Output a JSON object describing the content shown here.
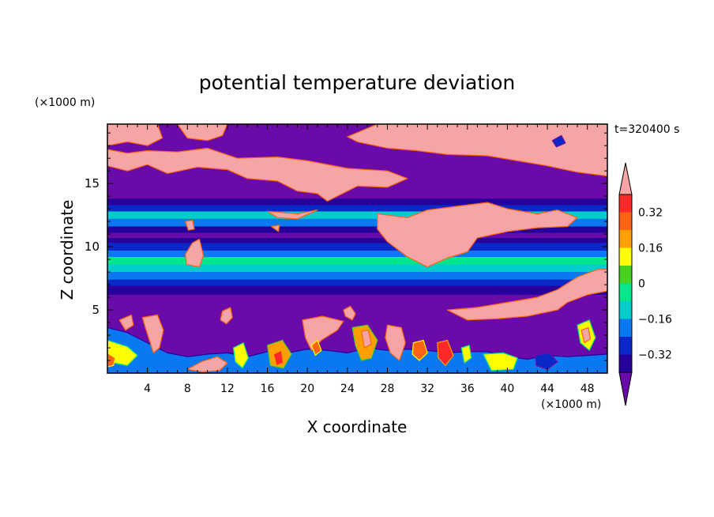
{
  "chart_data": {
    "type": "heatmap",
    "title": "potential temperature deviation",
    "xlabel": "X coordinate",
    "ylabel": "Z coordinate",
    "x_unit": "(×1000 m)",
    "y_unit": "(×1000 m)",
    "time_label": "t=320400 s",
    "xlim": [
      0,
      50
    ],
    "ylim": [
      0,
      19.7
    ],
    "x_ticks": [
      4,
      8,
      12,
      16,
      20,
      24,
      28,
      32,
      36,
      40,
      44,
      48
    ],
    "y_ticks": [
      5,
      10,
      15
    ],
    "colorbar": {
      "levels": [
        -0.4,
        -0.32,
        -0.24,
        -0.16,
        -0.08,
        0,
        0.08,
        0.16,
        0.24,
        0.32,
        0.4
      ],
      "labels": [
        "0.32",
        "0.16",
        "0",
        "−0.16",
        "−0.32"
      ],
      "label_values": [
        0.32,
        0.16,
        0,
        -0.16,
        -0.32
      ],
      "colors": [
        "#6a0aa8",
        "#26009a",
        "#0a28c8",
        "#0a78f0",
        "#00cccc",
        "#00e68c",
        "#46d21e",
        "#ffff00",
        "#ffa000",
        "#ff6414",
        "#ff2828",
        "#f5a5a5"
      ],
      "extend": "both"
    },
    "bands": [
      {
        "z": [
          0,
          0.4
        ],
        "level": 3
      },
      {
        "z": [
          6.2,
          6.9
        ],
        "level": 1
      },
      {
        "z": [
          6.9,
          7.4
        ],
        "level": 2
      },
      {
        "z": [
          7.4,
          8.0
        ],
        "level": 3
      },
      {
        "z": [
          8.0,
          8.6
        ],
        "level": 4
      },
      {
        "z": [
          8.6,
          9.2
        ],
        "level": 5
      },
      {
        "z": [
          9.2,
          9.7
        ],
        "level": 3
      },
      {
        "z": [
          9.7,
          10.3
        ],
        "level": 2
      },
      {
        "z": [
          10.3,
          10.7
        ],
        "level": 1
      },
      {
        "z": [
          10.7,
          11.1
        ],
        "level": 0
      },
      {
        "z": [
          11.1,
          11.6
        ],
        "level": 1
      },
      {
        "z": [
          11.6,
          12.2
        ],
        "level": 3
      },
      {
        "z": [
          12.2,
          12.8
        ],
        "level": 4
      },
      {
        "z": [
          12.8,
          13.3
        ],
        "level": 2
      },
      {
        "z": [
          13.3,
          13.8
        ],
        "level": 1
      }
    ],
    "blobs": [
      {
        "pts": [
          [
            0,
            16.4
          ],
          [
            2,
            16
          ],
          [
            4,
            16.5
          ],
          [
            6,
            15.8
          ],
          [
            9,
            16.3
          ],
          [
            12,
            16.1
          ],
          [
            14,
            15.4
          ],
          [
            17,
            15.2
          ],
          [
            19,
            14.4
          ],
          [
            21,
            14.2
          ],
          [
            22,
            13.6
          ],
          [
            23,
            14
          ],
          [
            25,
            14.8
          ],
          [
            28,
            14.7
          ],
          [
            30,
            15.4
          ],
          [
            28,
            16
          ],
          [
            24,
            16.2
          ],
          [
            20,
            16.8
          ],
          [
            17,
            17.1
          ],
          [
            13,
            17
          ],
          [
            10,
            17.8
          ],
          [
            7,
            17.5
          ],
          [
            4,
            17.6
          ],
          [
            2,
            17.4
          ],
          [
            0,
            17.7
          ]
        ],
        "level": 11
      },
      {
        "pts": [
          [
            0,
            19.7
          ],
          [
            5,
            19.7
          ],
          [
            5.5,
            18.6
          ],
          [
            4,
            18
          ],
          [
            2,
            18.3
          ],
          [
            0,
            18
          ]
        ],
        "level": 11
      },
      {
        "pts": [
          [
            7,
            19.7
          ],
          [
            12,
            19.7
          ],
          [
            11.5,
            18.8
          ],
          [
            10,
            18.4
          ],
          [
            8,
            18.6
          ]
        ],
        "level": 11
      },
      {
        "pts": [
          [
            27,
            19.7
          ],
          [
            50,
            19.7
          ],
          [
            50,
            15.6
          ],
          [
            47,
            15.9
          ],
          [
            44,
            16.4
          ],
          [
            41,
            16.8
          ],
          [
            38,
            17.2
          ],
          [
            34,
            17.3
          ],
          [
            31,
            17.6
          ],
          [
            28,
            17.8
          ],
          [
            25,
            18.3
          ],
          [
            24,
            18.7
          ],
          [
            25.5,
            19.2
          ]
        ],
        "level": 11
      },
      {
        "pts": [
          [
            27,
            12.6
          ],
          [
            30,
            12.3
          ],
          [
            32,
            12.9
          ],
          [
            35,
            13.2
          ],
          [
            38,
            13.5
          ],
          [
            40,
            13
          ],
          [
            43,
            12.6
          ],
          [
            45,
            12.9
          ],
          [
            47,
            12.3
          ],
          [
            46,
            11.6
          ],
          [
            43,
            11.5
          ],
          [
            40,
            11.2
          ],
          [
            37,
            10.7
          ],
          [
            36,
            9.6
          ],
          [
            34,
            9.1
          ],
          [
            32,
            8.4
          ],
          [
            30,
            9.2
          ],
          [
            28,
            10.4
          ],
          [
            27,
            11.4
          ]
        ],
        "level": 11
      },
      {
        "pts": [
          [
            16,
            12.8
          ],
          [
            19,
            12.6
          ],
          [
            21,
            12.9
          ],
          [
            19,
            12.2
          ],
          [
            17,
            12.3
          ]
        ],
        "level": 11
      },
      {
        "pts": [
          [
            16.4,
            11.6
          ],
          [
            17.2,
            11.7
          ],
          [
            17.1,
            11.2
          ]
        ],
        "level": 11
      },
      {
        "pts": [
          [
            7.8,
            12
          ],
          [
            8.5,
            12.1
          ],
          [
            8.7,
            11.4
          ],
          [
            8.1,
            11.3
          ]
        ],
        "level": 11
      },
      {
        "pts": [
          [
            7.9,
            8.6
          ],
          [
            9.2,
            8.4
          ],
          [
            9.6,
            9.3
          ],
          [
            9.2,
            10.6
          ],
          [
            8.5,
            10.3
          ],
          [
            7.8,
            9.4
          ]
        ],
        "level": 11
      },
      {
        "pts": [
          [
            34,
            5
          ],
          [
            37,
            5.2
          ],
          [
            40,
            5.6
          ],
          [
            43,
            6
          ],
          [
            45,
            6.6
          ],
          [
            47,
            7.6
          ],
          [
            49,
            8.2
          ],
          [
            50,
            8.2
          ],
          [
            50,
            6.5
          ],
          [
            48,
            6.2
          ],
          [
            46,
            5.6
          ],
          [
            45,
            5
          ],
          [
            42,
            4.5
          ],
          [
            39,
            4.3
          ],
          [
            36,
            4.2
          ]
        ],
        "level": 11
      },
      {
        "pts": [
          [
            23.6,
            5
          ],
          [
            24.3,
            5.3
          ],
          [
            24.8,
            4.7
          ],
          [
            24.5,
            4.2
          ],
          [
            23.8,
            4.5
          ]
        ],
        "level": 11
      },
      {
        "pts": [
          [
            11.5,
            4.9
          ],
          [
            12.3,
            5.2
          ],
          [
            12.5,
            4.4
          ],
          [
            11.9,
            3.9
          ],
          [
            11.3,
            4.2
          ]
        ],
        "level": 11
      },
      {
        "pts": [
          [
            0,
            3.6
          ],
          [
            2,
            3.2
          ],
          [
            4,
            2.4
          ],
          [
            6,
            1.6
          ],
          [
            8,
            1.3
          ],
          [
            10,
            1.5
          ],
          [
            12,
            1.6
          ],
          [
            14,
            1.3
          ],
          [
            16,
            1.7
          ],
          [
            18,
            1.6
          ],
          [
            20,
            1.9
          ],
          [
            22,
            1.8
          ],
          [
            24,
            1.6
          ],
          [
            26,
            2
          ],
          [
            28,
            1.8
          ],
          [
            30,
            1.9
          ],
          [
            32,
            1.8
          ],
          [
            34,
            1.6
          ],
          [
            36,
            1.7
          ],
          [
            38,
            1.7
          ],
          [
            40,
            1.3
          ],
          [
            42,
            1.1
          ],
          [
            44,
            1.4
          ],
          [
            46,
            1.3
          ],
          [
            48,
            1.4
          ],
          [
            50,
            1.5
          ],
          [
            50,
            0
          ],
          [
            0,
            0
          ]
        ],
        "level": 3
      },
      {
        "pts": [
          [
            0,
            2.6
          ],
          [
            2,
            2.1
          ],
          [
            3,
            1.4
          ],
          [
            2,
            0.6
          ],
          [
            0,
            0.9
          ]
        ],
        "level": 7
      },
      {
        "pts": [
          [
            3.5,
            4.4
          ],
          [
            5,
            4.6
          ],
          [
            5.6,
            3.4
          ],
          [
            5.2,
            2
          ],
          [
            4.6,
            1.6
          ],
          [
            4.2,
            2.6
          ],
          [
            3.8,
            3.6
          ]
        ],
        "level": 11
      },
      {
        "pts": [
          [
            1.2,
            4.2
          ],
          [
            2.4,
            4.6
          ],
          [
            2.6,
            3.8
          ],
          [
            1.8,
            3.4
          ]
        ],
        "level": 11
      },
      {
        "pts": [
          [
            0,
            1.6
          ],
          [
            0.8,
            1.2
          ],
          [
            0.6,
            0.6
          ],
          [
            0,
            0.5
          ]
        ],
        "level": 9
      },
      {
        "pts": [
          [
            8,
            0.3
          ],
          [
            9.4,
            0.9
          ],
          [
            11,
            1.3
          ],
          [
            12,
            0.8
          ],
          [
            11.2,
            0.2
          ],
          [
            9.5,
            0.1
          ]
        ],
        "level": 11
      },
      {
        "pts": [
          [
            12.6,
            2
          ],
          [
            13.6,
            2.4
          ],
          [
            14.1,
            1.2
          ],
          [
            13.5,
            0.4
          ],
          [
            12.8,
            0.9
          ]
        ],
        "level": 7
      },
      {
        "pts": [
          [
            16,
            2.2
          ],
          [
            17.5,
            2.6
          ],
          [
            18.4,
            1.5
          ],
          [
            17.6,
            0.4
          ],
          [
            16.3,
            0.6
          ]
        ],
        "level": 8
      },
      {
        "pts": [
          [
            16.6,
            1.5
          ],
          [
            17.4,
            1.8
          ],
          [
            17.6,
            0.8
          ],
          [
            16.9,
            0.6
          ]
        ],
        "level": 10
      },
      {
        "pts": [
          [
            19.5,
            4.2
          ],
          [
            21.5,
            4.5
          ],
          [
            23.6,
            4.1
          ],
          [
            23,
            3.4
          ],
          [
            21.4,
            2.6
          ],
          [
            20.4,
            1.8
          ],
          [
            19.8,
            2.8
          ]
        ],
        "level": 11
      },
      {
        "pts": [
          [
            20.4,
            2.2
          ],
          [
            21,
            2.6
          ],
          [
            21.4,
            1.8
          ],
          [
            20.8,
            1.4
          ]
        ],
        "level": 9
      },
      {
        "pts": [
          [
            24.5,
            3.6
          ],
          [
            26,
            3.8
          ],
          [
            27,
            2.6
          ],
          [
            26.4,
            1.2
          ],
          [
            25.4,
            1
          ],
          [
            24.8,
            2.2
          ]
        ],
        "level": 8
      },
      {
        "pts": [
          [
            25.4,
            3.3
          ],
          [
            26.1,
            3.4
          ],
          [
            26.4,
            2.3
          ],
          [
            25.7,
            2
          ]
        ],
        "level": 11
      },
      {
        "pts": [
          [
            28,
            3.8
          ],
          [
            29.4,
            3.6
          ],
          [
            29.8,
            2.4
          ],
          [
            29.2,
            1
          ],
          [
            28.3,
            1.6
          ],
          [
            27.8,
            2.8
          ]
        ],
        "level": 11
      },
      {
        "pts": [
          [
            30.6,
            2.4
          ],
          [
            31.6,
            2.6
          ],
          [
            32,
            1.6
          ],
          [
            31.2,
            1
          ],
          [
            30.5,
            1.5
          ]
        ],
        "level": 9
      },
      {
        "pts": [
          [
            33,
            2.4
          ],
          [
            34,
            2.6
          ],
          [
            34.6,
            1.4
          ],
          [
            33.8,
            0.6
          ],
          [
            33.1,
            1.2
          ]
        ],
        "level": 10
      },
      {
        "pts": [
          [
            35.4,
            2
          ],
          [
            36.2,
            2.2
          ],
          [
            36.4,
            1.2
          ],
          [
            35.7,
            0.8
          ]
        ],
        "level": 7
      },
      {
        "pts": [
          [
            37.6,
            1.5
          ],
          [
            39.6,
            1.6
          ],
          [
            41,
            1.2
          ],
          [
            40.6,
            0.3
          ],
          [
            38.4,
            0.2
          ]
        ],
        "level": 7
      },
      {
        "pts": [
          [
            42.8,
            1.4
          ],
          [
            44.2,
            1.6
          ],
          [
            45,
            0.9
          ],
          [
            44,
            0.3
          ],
          [
            42.9,
            0.6
          ]
        ],
        "level": 2
      },
      {
        "pts": [
          [
            47,
            3.8
          ],
          [
            48.2,
            4.2
          ],
          [
            48.8,
            2.8
          ],
          [
            48.2,
            1.8
          ],
          [
            47.3,
            2.4
          ]
        ],
        "level": 7
      },
      {
        "pts": [
          [
            47.4,
            3.4
          ],
          [
            48.1,
            3.6
          ],
          [
            48.3,
            2.7
          ],
          [
            47.7,
            2.4
          ]
        ],
        "level": 11
      },
      {
        "pts": [
          [
            44.5,
            18.4
          ],
          [
            45.4,
            18.8
          ],
          [
            45.8,
            18.2
          ],
          [
            44.9,
            17.9
          ]
        ],
        "level": 2
      }
    ]
  }
}
